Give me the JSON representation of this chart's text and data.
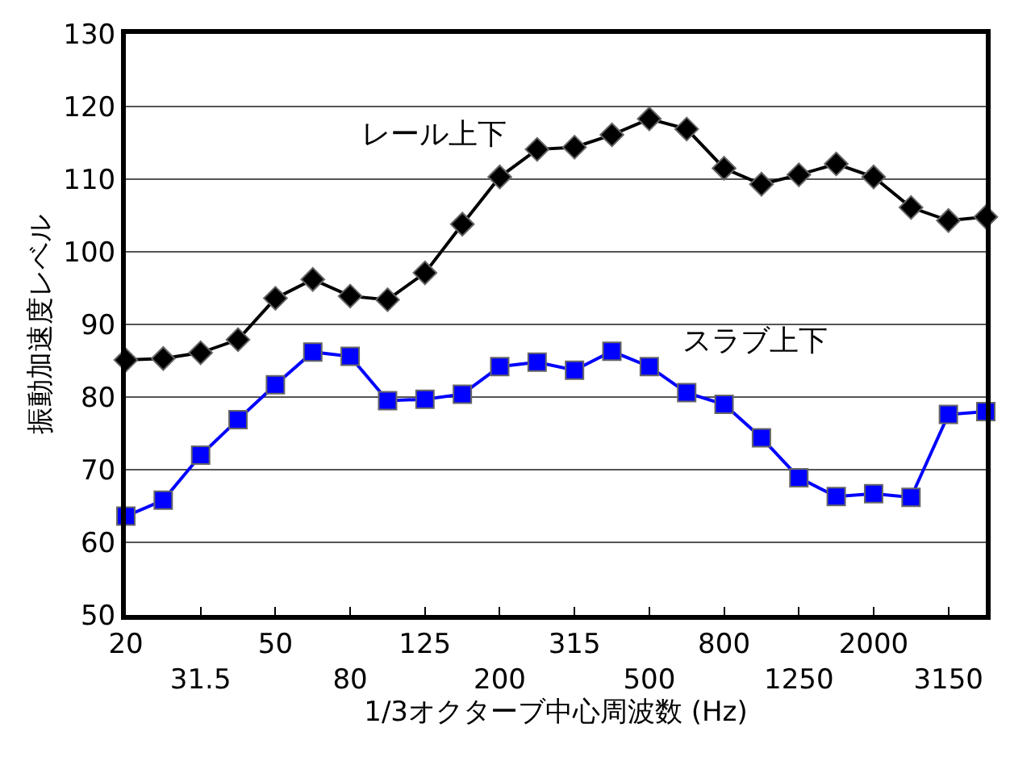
{
  "chart_data": {
    "type": "line",
    "xlabel": "1/3オクターブ中心周波数 (Hz)",
    "ylabel": "振動加速度レベル",
    "categories": [
      "20",
      null,
      "31.5",
      null,
      "50",
      null,
      "80",
      null,
      "125",
      null,
      "200",
      null,
      "315",
      null,
      "500",
      null,
      "800",
      null,
      "1250",
      null,
      "2000",
      null,
      "3150",
      null
    ],
    "series": [
      {
        "name": "レール上下",
        "color": "#000000",
        "marker": "diamond",
        "values": [
          85.1,
          85.3,
          86.1,
          87.9,
          93.6,
          96.2,
          93.9,
          93.4,
          97.1,
          103.8,
          110.3,
          114.1,
          114.4,
          116.1,
          118.3,
          116.9,
          111.5,
          109.3,
          110.6,
          112.1,
          110.3,
          106.1,
          104.3,
          104.8
        ]
      },
      {
        "name": "スラブ上下",
        "color": "#0000ff",
        "marker": "square",
        "values": [
          63.6,
          65.8,
          72.0,
          76.9,
          81.7,
          86.2,
          85.6,
          79.5,
          79.7,
          80.4,
          84.2,
          84.8,
          83.7,
          86.3,
          84.2,
          80.6,
          79.0,
          74.4,
          68.9,
          66.3,
          66.7,
          66.2,
          77.6,
          78.0
        ]
      }
    ],
    "ylim": [
      50,
      130
    ],
    "yticks": [
      50,
      60,
      70,
      80,
      90,
      100,
      110,
      120,
      130
    ],
    "grid": "y"
  }
}
